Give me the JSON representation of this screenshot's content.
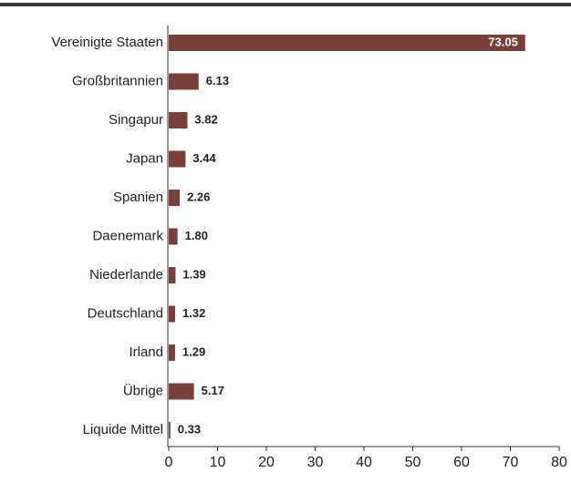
{
  "chart_data": {
    "type": "bar",
    "orientation": "horizontal",
    "categories": [
      "Vereinigte Staaten",
      "Großbritannien",
      "Singapur",
      "Japan",
      "Spanien",
      "Daenemark",
      "Niederlande",
      "Deutschland",
      "Irland",
      "Übrige",
      "Liquide Mittel"
    ],
    "values": [
      73.05,
      6.13,
      3.82,
      3.44,
      2.26,
      1.8,
      1.39,
      1.32,
      1.29,
      5.17,
      0.33
    ],
    "value_labels": [
      "73.05",
      "6.13",
      "3.82",
      "3.44",
      "2.26",
      "1.80",
      "1.39",
      "1.32",
      "1.29",
      "5.17",
      "0.33"
    ],
    "color": "#7b3f3a",
    "xlim": [
      0,
      80
    ],
    "xticks": [
      0,
      10,
      20,
      30,
      40,
      50,
      60,
      70,
      80
    ],
    "grid": false
  }
}
